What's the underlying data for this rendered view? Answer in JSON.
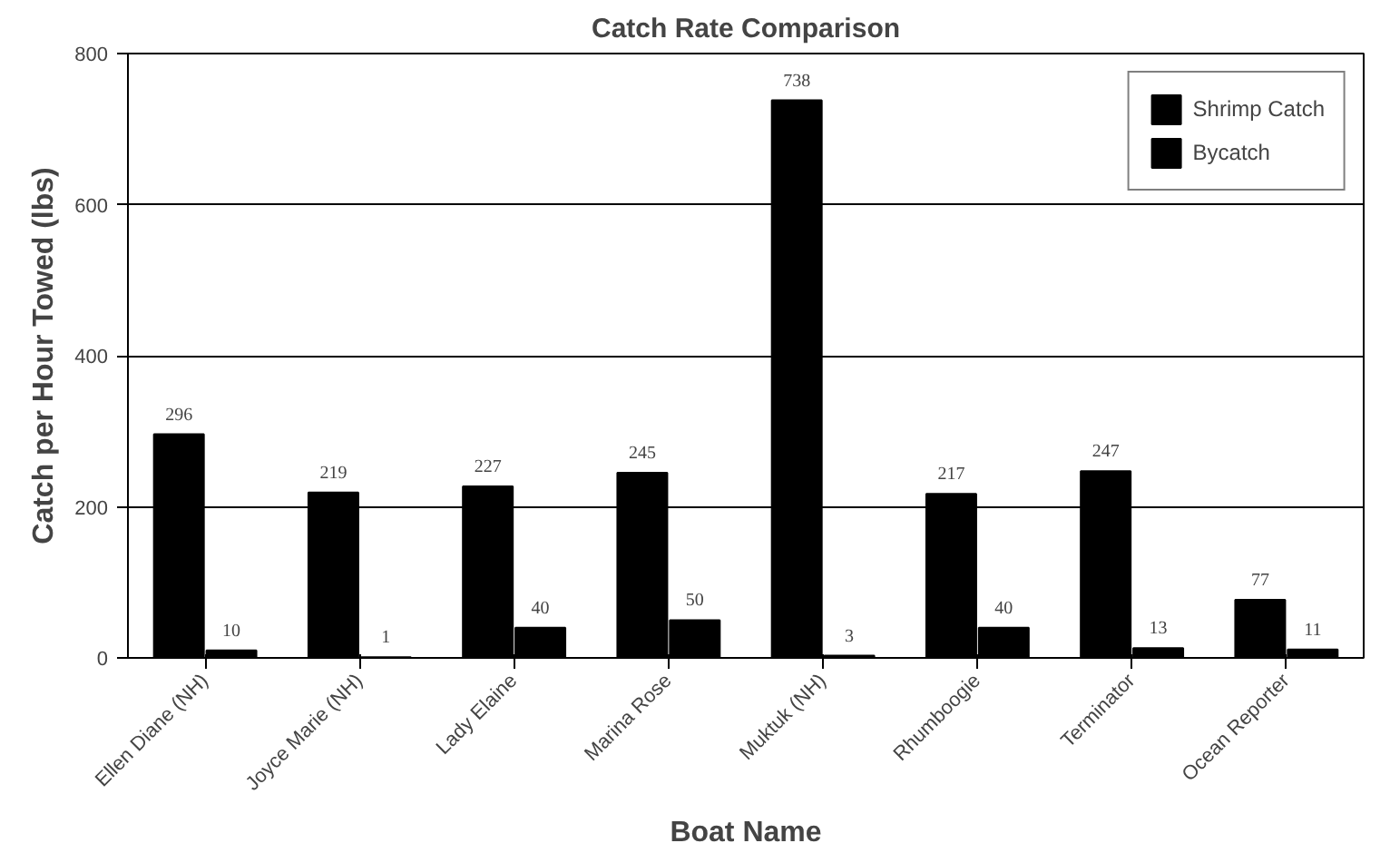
{
  "chart_data": {
    "type": "bar",
    "title": "Catch Rate Comparison",
    "xlabel": "Boat Name",
    "ylabel": "Catch per Hour Towed (lbs)",
    "categories": [
      "Ellen Diane (NH)",
      "Joyce Marie (NH)",
      "Lady Elaine",
      "Marina Rose",
      "Muktuk (NH)",
      "Rhumboogie",
      "Terminator",
      "Ocean Reporter"
    ],
    "series": [
      {
        "name": "Shrimp Catch",
        "color": "#000000",
        "values": [
          296,
          219,
          227,
          245,
          738,
          217,
          247,
          77
        ]
      },
      {
        "name": "Bycatch",
        "color": "#000000",
        "values": [
          10,
          1,
          40,
          50,
          3,
          40,
          13,
          11
        ]
      }
    ],
    "ylim": [
      0,
      800
    ],
    "yticks": [
      0,
      200,
      400,
      600,
      800
    ],
    "grid": "y",
    "legend": "top right",
    "data_labels": true
  }
}
